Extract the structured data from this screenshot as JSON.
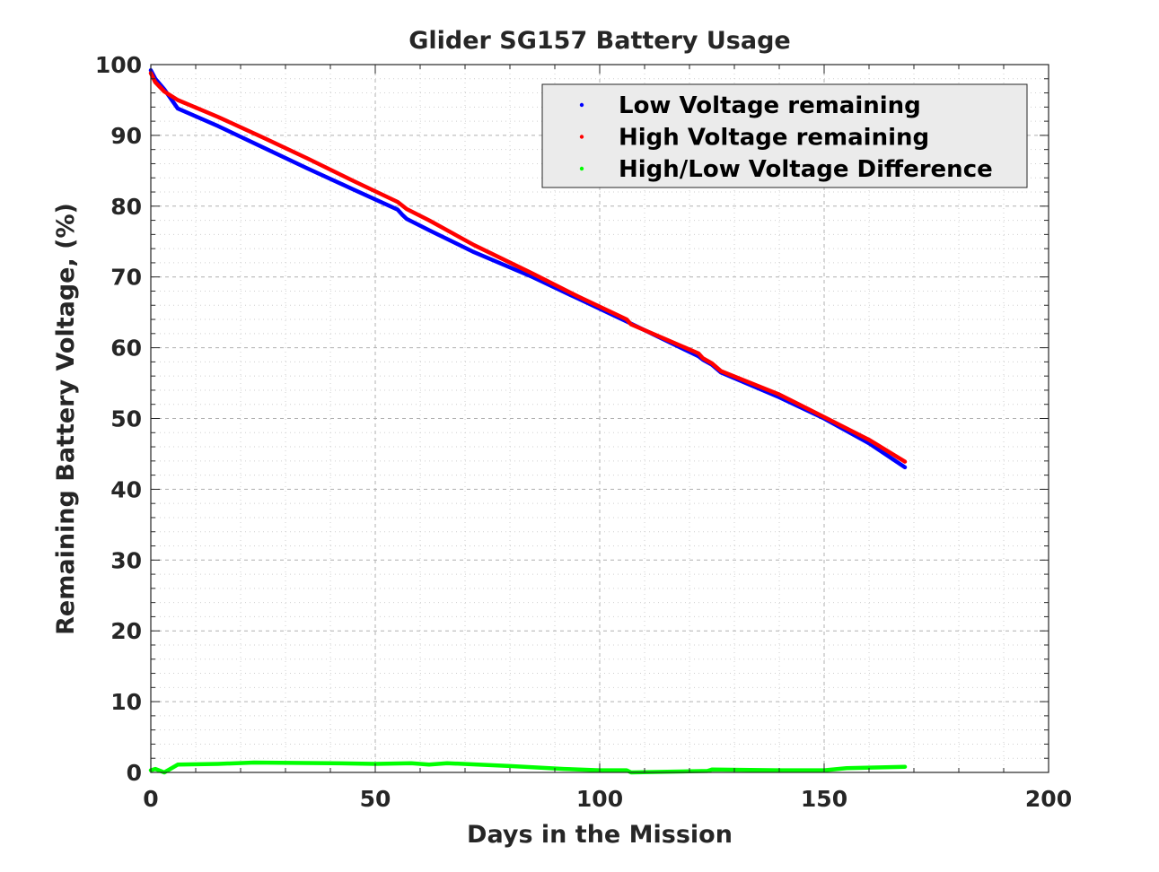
{
  "chart_data": {
    "type": "line",
    "title": "Glider SG157 Battery Usage",
    "xlabel": "Days in the Mission",
    "ylabel": "Remaining Battery Voltage, (%)",
    "xlim": [
      0,
      200
    ],
    "ylim": [
      0,
      100
    ],
    "xticks": [
      0,
      50,
      100,
      150,
      200
    ],
    "yticks": [
      0,
      10,
      20,
      30,
      40,
      50,
      60,
      70,
      80,
      90,
      100
    ],
    "x_minor_step": 10,
    "y_minor_step": 2,
    "grid": true,
    "legend_position": "top-right",
    "series": [
      {
        "name": "Low Voltage remaining",
        "color": "#0000ff",
        "points": [
          [
            0,
            99.2
          ],
          [
            1,
            98
          ],
          [
            3,
            96.5
          ],
          [
            6,
            93.8
          ],
          [
            15,
            91.3
          ],
          [
            25,
            88.3
          ],
          [
            35,
            85.3
          ],
          [
            45,
            82.4
          ],
          [
            55,
            79.5
          ],
          [
            56,
            78.8
          ],
          [
            57,
            78.2
          ],
          [
            62,
            76.6
          ],
          [
            72,
            73.5
          ],
          [
            85,
            70
          ],
          [
            95,
            67
          ],
          [
            106,
            63.7
          ],
          [
            122,
            58.8
          ],
          [
            123,
            58.3
          ],
          [
            125,
            57.6
          ],
          [
            127,
            56.5
          ],
          [
            140,
            53
          ],
          [
            150,
            50
          ],
          [
            160,
            46.5
          ],
          [
            168,
            43.1
          ]
        ]
      },
      {
        "name": "High Voltage remaining",
        "color": "#ff0000",
        "points": [
          [
            0,
            98.8
          ],
          [
            1,
            97.5
          ],
          [
            3,
            96.2
          ],
          [
            6,
            95
          ],
          [
            15,
            92.6
          ],
          [
            25,
            89.7
          ],
          [
            35,
            86.7
          ],
          [
            45,
            83.6
          ],
          [
            55,
            80.6
          ],
          [
            57,
            79.6
          ],
          [
            62,
            78
          ],
          [
            72,
            74.5
          ],
          [
            85,
            70.5
          ],
          [
            95,
            67.3
          ],
          [
            106,
            64
          ],
          [
            107,
            63.3
          ],
          [
            122,
            59.2
          ],
          [
            123,
            58.5
          ],
          [
            125,
            57.8
          ],
          [
            127,
            56.7
          ],
          [
            140,
            53.4
          ],
          [
            150,
            50.2
          ],
          [
            160,
            47
          ],
          [
            168,
            43.9
          ]
        ]
      },
      {
        "name": "High/Low Voltage Difference",
        "color": "#00ff00",
        "points": [
          [
            0,
            0.3
          ],
          [
            1,
            0.5
          ],
          [
            3,
            0
          ],
          [
            6,
            1.1
          ],
          [
            15,
            1.2
          ],
          [
            23,
            1.4
          ],
          [
            40,
            1.3
          ],
          [
            50,
            1.2
          ],
          [
            58,
            1.3
          ],
          [
            62,
            1.1
          ],
          [
            66,
            1.3
          ],
          [
            80,
            0.9
          ],
          [
            92,
            0.5
          ],
          [
            100,
            0.3
          ],
          [
            106,
            0.3
          ],
          [
            107,
            0
          ],
          [
            115,
            0.1
          ],
          [
            124,
            0.2
          ],
          [
            125,
            0.4
          ],
          [
            140,
            0.3
          ],
          [
            150,
            0.3
          ],
          [
            155,
            0.6
          ],
          [
            168,
            0.8
          ]
        ]
      }
    ]
  }
}
